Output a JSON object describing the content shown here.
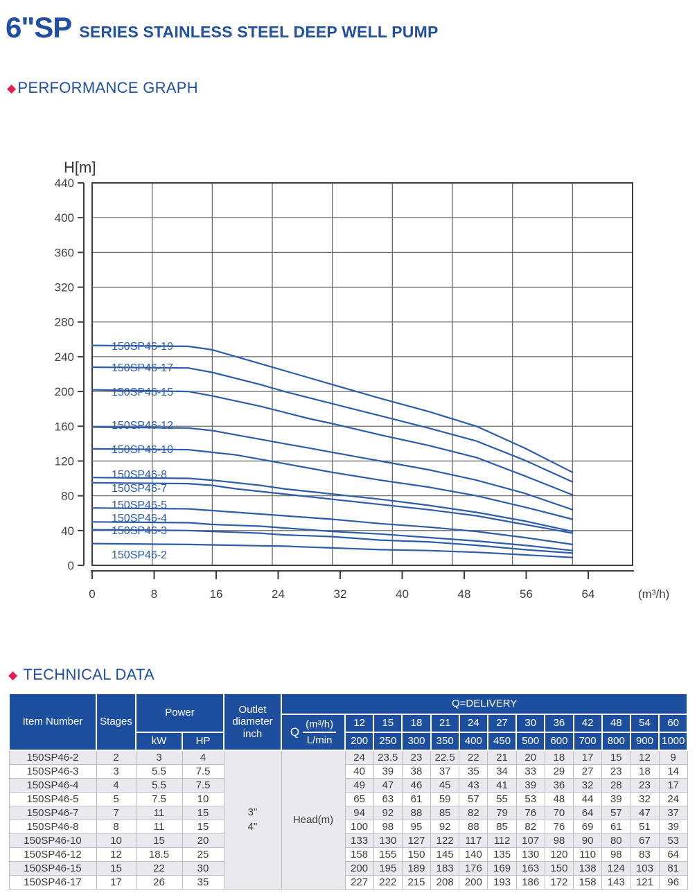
{
  "page": {
    "title_brand": "6\"SP",
    "title_rest": "SERIES STAINLESS STEEL DEEP WELL PUMP"
  },
  "sections": {
    "bullet": "◆",
    "performance": "PERFORMANCE GRAPH",
    "technical": "TECHNICAL DATA"
  },
  "colors": {
    "accent_blue": "#2150a2",
    "curve_blue": "#2c5caa",
    "diamond_red": "#e61e50",
    "table_header_bg": "#1e4f9e",
    "row_alt": "#e9e9ef",
    "grid_gray": "#6b6b6d",
    "box_gray": "#3b3b3d"
  },
  "chart_data": {
    "type": "line",
    "title": "",
    "ylabel": "H[m]",
    "xlabel": "(m³/h)",
    "x_ticks": [
      0,
      8,
      16,
      24,
      32,
      40,
      48,
      56,
      64
    ],
    "y_ticks": [
      0,
      40,
      80,
      120,
      160,
      200,
      240,
      280,
      320,
      360,
      400,
      440
    ],
    "xlim": [
      0,
      70
    ],
    "ylim": [
      0,
      440
    ],
    "grid": true,
    "legend_position": "curve-labels-left",
    "q": [
      0,
      12,
      15,
      18,
      21,
      24,
      27,
      30,
      36,
      42,
      48,
      54,
      60
    ],
    "series": [
      {
        "name": "150SP46-19",
        "h": [
          253,
          252,
          248,
          240,
          232,
          224,
          216,
          208,
          192,
          177,
          160,
          135,
          107
        ]
      },
      {
        "name": "150SP46-17",
        "h": [
          228,
          227,
          222,
          215,
          208,
          200,
          193,
          186,
          172,
          158,
          143,
          121,
          96
        ]
      },
      {
        "name": "150SP46-15",
        "h": [
          202,
          200,
          195,
          189,
          183,
          176,
          169,
          163,
          150,
          138,
          124,
          103,
          81
        ]
      },
      {
        "name": "150SP46-12",
        "h": [
          159,
          158,
          155,
          150,
          145,
          140,
          135,
          130,
          120,
          110,
          98,
          83,
          64
        ]
      },
      {
        "name": "150SP46-10",
        "h": [
          134,
          133,
          130,
          127,
          122,
          117,
          112,
          107,
          98,
          90,
          80,
          67,
          53
        ]
      },
      {
        "name": "150SP46-8",
        "h": [
          101,
          100,
          98,
          95,
          92,
          88,
          85,
          82,
          76,
          69,
          61,
          51,
          39
        ]
      },
      {
        "name": "150SP46-7",
        "h": [
          95,
          94,
          92,
          88,
          85,
          82,
          79,
          76,
          70,
          64,
          57,
          47,
          37
        ]
      },
      {
        "name": "150SP46-5",
        "h": [
          66,
          65,
          63,
          61,
          59,
          57,
          55,
          53,
          48,
          44,
          39,
          32,
          24
        ]
      },
      {
        "name": "150SP46-4",
        "h": [
          50,
          49,
          47,
          46,
          45,
          43,
          41,
          39,
          36,
          32,
          28,
          23,
          17
        ]
      },
      {
        "name": "150SP46-3",
        "h": [
          41,
          40,
          39,
          38,
          37,
          35,
          34,
          33,
          29,
          27,
          23,
          18,
          14
        ]
      },
      {
        "name": "150SP46-2",
        "h": [
          25,
          24,
          23.5,
          23,
          22.5,
          22,
          21,
          20,
          18,
          17,
          15,
          12,
          9
        ]
      }
    ]
  },
  "table": {
    "col_item": "Item Number",
    "col_stages": "Stages",
    "col_power": "Power",
    "col_kw": "kW",
    "col_hp": "HP",
    "col_outlet": "Outlet diameter inch",
    "q_delivery": "Q=DELIVERY",
    "q_label": "Q",
    "q_unit_top": "(m³/h)",
    "q_unit_bottom": "L/min",
    "head_label": "Head(m)",
    "outlet_values": [
      "3\"",
      "4\""
    ],
    "q_m3h": [
      "12",
      "15",
      "18",
      "21",
      "24",
      "27",
      "30",
      "36",
      "42",
      "48",
      "54",
      "60"
    ],
    "q_lmin": [
      "200",
      "250",
      "300",
      "350",
      "400",
      "450",
      "500",
      "600",
      "700",
      "800",
      "900",
      "1000"
    ],
    "rows": [
      {
        "item": "150SP46-2",
        "stages": "2",
        "kw": "3",
        "hp": "4",
        "heads": [
          "24",
          "23.5",
          "23",
          "22.5",
          "22",
          "21",
          "20",
          "18",
          "17",
          "15",
          "12",
          "9"
        ]
      },
      {
        "item": "150SP46-3",
        "stages": "3",
        "kw": "5.5",
        "hp": "7.5",
        "heads": [
          "40",
          "39",
          "38",
          "37",
          "35",
          "34",
          "33",
          "29",
          "27",
          "23",
          "18",
          "14"
        ]
      },
      {
        "item": "150SP46-4",
        "stages": "4",
        "kw": "5.5",
        "hp": "7.5",
        "heads": [
          "49",
          "47",
          "46",
          "45",
          "43",
          "41",
          "39",
          "36",
          "32",
          "28",
          "23",
          "17"
        ]
      },
      {
        "item": "150SP46-5",
        "stages": "5",
        "kw": "7.5",
        "hp": "10",
        "heads": [
          "65",
          "63",
          "61",
          "59",
          "57",
          "55",
          "53",
          "48",
          "44",
          "39",
          "32",
          "24"
        ]
      },
      {
        "item": "150SP46-7",
        "stages": "7",
        "kw": "11",
        "hp": "15",
        "heads": [
          "94",
          "92",
          "88",
          "85",
          "82",
          "79",
          "76",
          "70",
          "64",
          "57",
          "47",
          "37"
        ]
      },
      {
        "item": "150SP46-8",
        "stages": "8",
        "kw": "11",
        "hp": "15",
        "heads": [
          "100",
          "98",
          "95",
          "92",
          "88",
          "85",
          "82",
          "76",
          "69",
          "61",
          "51",
          "39"
        ]
      },
      {
        "item": "150SP46-10",
        "stages": "10",
        "kw": "15",
        "hp": "20",
        "heads": [
          "133",
          "130",
          "127",
          "122",
          "117",
          "112",
          "107",
          "98",
          "90",
          "80",
          "67",
          "53"
        ]
      },
      {
        "item": "150SP46-12",
        "stages": "12",
        "kw": "18.5",
        "hp": "25",
        "heads": [
          "158",
          "155",
          "150",
          "145",
          "140",
          "135",
          "130",
          "120",
          "110",
          "98",
          "83",
          "64"
        ]
      },
      {
        "item": "150SP46-15",
        "stages": "15",
        "kw": "22",
        "hp": "30",
        "heads": [
          "200",
          "195",
          "189",
          "183",
          "176",
          "169",
          "163",
          "150",
          "138",
          "124",
          "103",
          "81"
        ]
      },
      {
        "item": "150SP46-17",
        "stages": "17",
        "kw": "26",
        "hp": "35",
        "heads": [
          "227",
          "222",
          "215",
          "208",
          "200",
          "193",
          "186",
          "172",
          "158",
          "143",
          "121",
          "96"
        ]
      }
    ]
  }
}
